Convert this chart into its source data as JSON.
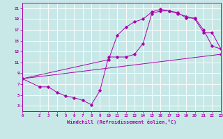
{
  "xlabel": "Windchill (Refroidissement éolien,°C)",
  "bg_color": "#c8e8e8",
  "line_color": "#aa00aa",
  "xlim": [
    0,
    23
  ],
  "ylim": [
    2,
    22
  ],
  "xticks": [
    0,
    2,
    3,
    4,
    5,
    6,
    7,
    8,
    9,
    10,
    11,
    12,
    13,
    14,
    15,
    16,
    17,
    18,
    19,
    20,
    21,
    22,
    23
  ],
  "yticks": [
    3,
    5,
    7,
    9,
    11,
    13,
    15,
    17,
    19,
    21
  ],
  "line1_x": [
    0,
    2,
    3,
    4,
    5,
    6,
    7,
    8,
    9,
    10,
    11,
    12,
    13,
    14,
    15,
    16,
    17,
    18,
    19,
    20,
    21,
    22,
    23
  ],
  "line1_y": [
    8,
    6.5,
    6.5,
    5.5,
    4.8,
    4.5,
    4.0,
    3.2,
    5.8,
    12.0,
    12.0,
    12.0,
    12.5,
    14.5,
    20.0,
    20.5,
    20.5,
    20.2,
    19.2,
    19.2,
    17.0,
    14.0,
    13.5
  ],
  "line2_x": [
    0,
    10,
    11,
    12,
    13,
    14,
    15,
    16,
    17,
    18,
    19,
    20,
    21,
    22,
    23
  ],
  "line2_y": [
    8,
    11.5,
    16.0,
    17.5,
    18.5,
    19.0,
    20.3,
    20.8,
    20.5,
    20.0,
    19.5,
    19.0,
    16.5,
    16.5,
    13.5
  ],
  "line3_x": [
    0,
    23
  ],
  "line3_y": [
    8,
    12.5
  ]
}
